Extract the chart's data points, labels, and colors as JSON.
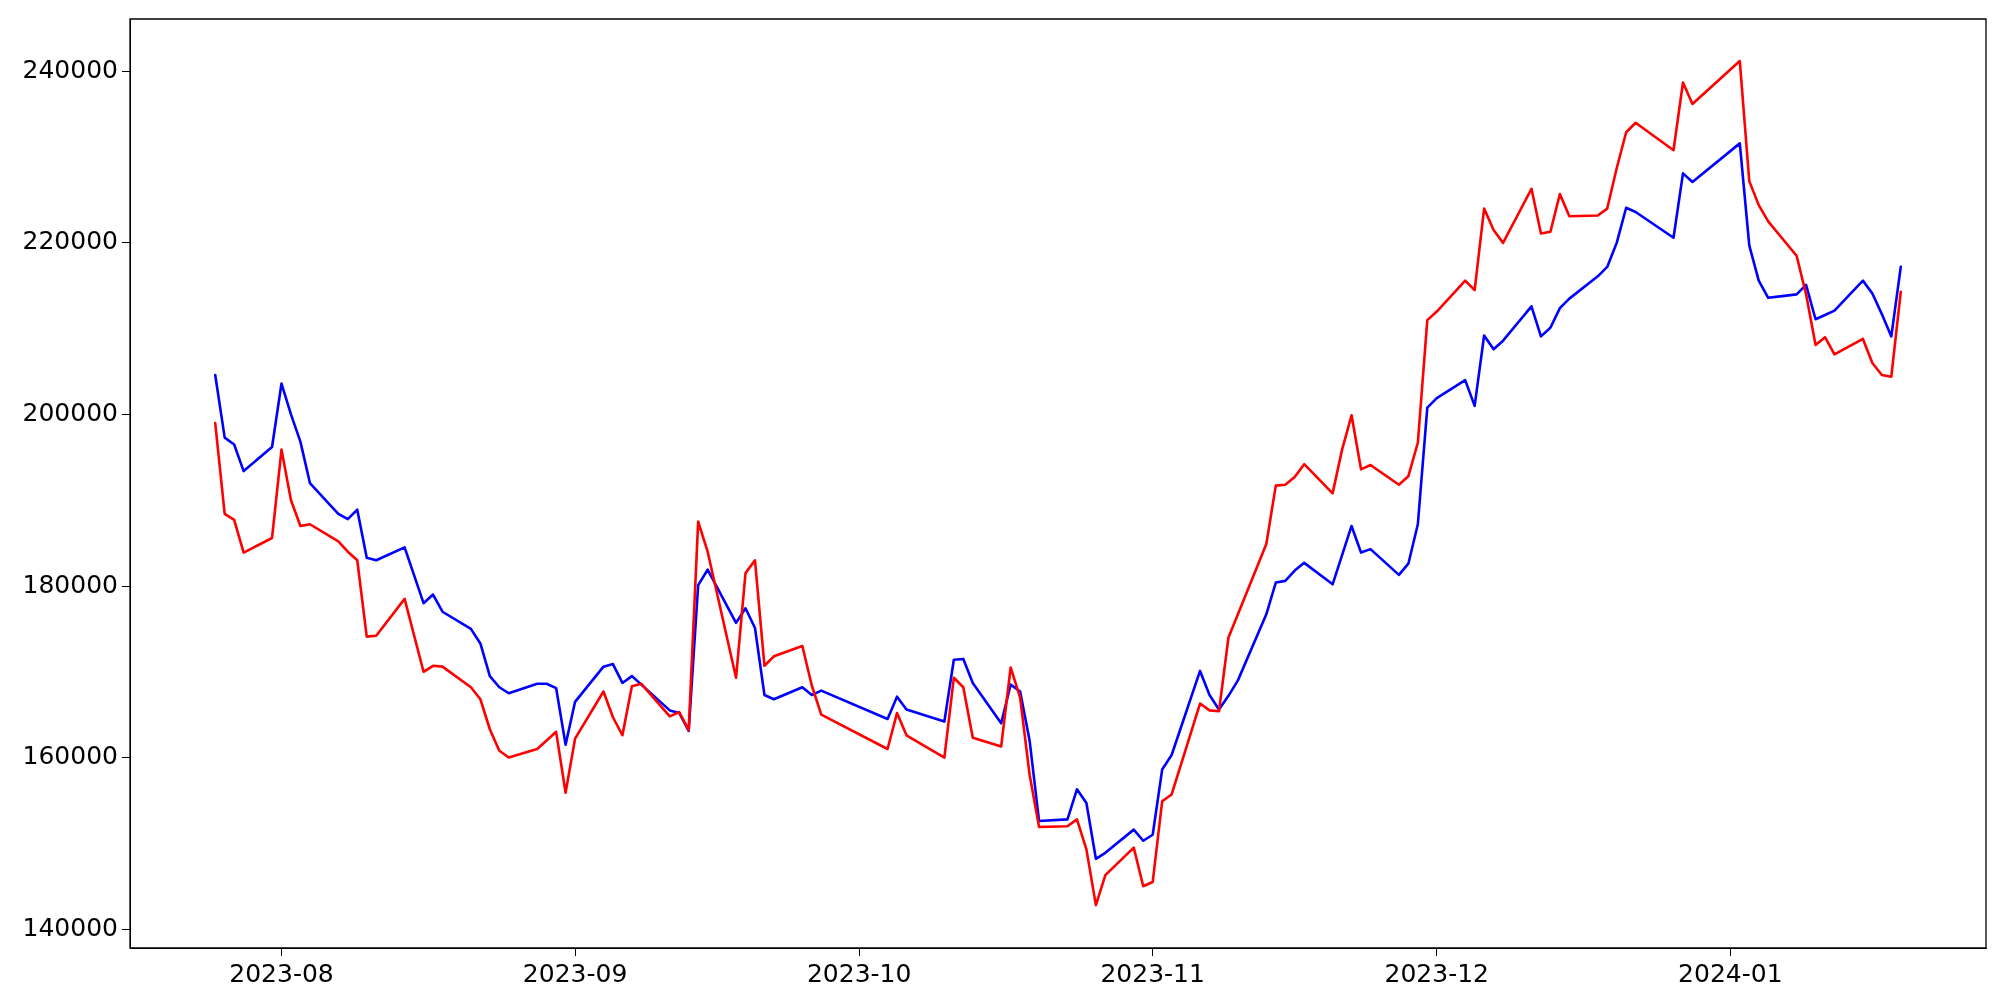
{
  "chart_data": {
    "type": "line",
    "x": [
      "2023-07-25",
      "2023-07-26",
      "2023-07-27",
      "2023-07-28",
      "2023-07-31",
      "2023-08-01",
      "2023-08-02",
      "2023-08-03",
      "2023-08-04",
      "2023-08-07",
      "2023-08-08",
      "2023-08-09",
      "2023-08-10",
      "2023-08-11",
      "2023-08-14",
      "2023-08-16",
      "2023-08-17",
      "2023-08-18",
      "2023-08-21",
      "2023-08-22",
      "2023-08-23",
      "2023-08-24",
      "2023-08-25",
      "2023-08-28",
      "2023-08-29",
      "2023-08-30",
      "2023-08-31",
      "2023-09-01",
      "2023-09-04",
      "2023-09-05",
      "2023-09-06",
      "2023-09-07",
      "2023-09-08",
      "2023-09-11",
      "2023-09-12",
      "2023-09-13",
      "2023-09-14",
      "2023-09-15",
      "2023-09-18",
      "2023-09-19",
      "2023-09-20",
      "2023-09-21",
      "2023-09-22",
      "2023-09-25",
      "2023-09-26",
      "2023-09-27",
      "2023-10-04",
      "2023-10-05",
      "2023-10-06",
      "2023-10-10",
      "2023-10-11",
      "2023-10-12",
      "2023-10-13",
      "2023-10-16",
      "2023-10-17",
      "2023-10-18",
      "2023-10-19",
      "2023-10-20",
      "2023-10-23",
      "2023-10-24",
      "2023-10-25",
      "2023-10-26",
      "2023-10-27",
      "2023-10-30",
      "2023-10-31",
      "2023-11-01",
      "2023-11-02",
      "2023-11-03",
      "2023-11-06",
      "2023-11-07",
      "2023-11-08",
      "2023-11-09",
      "2023-11-10",
      "2023-11-13",
      "2023-11-14",
      "2023-11-15",
      "2023-11-16",
      "2023-11-17",
      "2023-11-20",
      "2023-11-21",
      "2023-11-22",
      "2023-11-23",
      "2023-11-24",
      "2023-11-27",
      "2023-11-28",
      "2023-11-29",
      "2023-11-30",
      "2023-12-01",
      "2023-12-04",
      "2023-12-05",
      "2023-12-06",
      "2023-12-07",
      "2023-12-08",
      "2023-12-11",
      "2023-12-12",
      "2023-12-13",
      "2023-12-14",
      "2023-12-15",
      "2023-12-18",
      "2023-12-19",
      "2023-12-20",
      "2023-12-21",
      "2023-12-22",
      "2023-12-26",
      "2023-12-27",
      "2023-12-28",
      "2024-01-02",
      "2024-01-03",
      "2024-01-04",
      "2024-01-05",
      "2024-01-08",
      "2024-01-09",
      "2024-01-10",
      "2024-01-11",
      "2024-01-12",
      "2024-01-15",
      "2024-01-16",
      "2024-01-17",
      "2024-01-18",
      "2024-01-19"
    ],
    "series": [
      {
        "color": "#ff0000",
        "values": [
          199000,
          188400,
          187700,
          183900,
          185600,
          195900,
          190000,
          187000,
          187200,
          185200,
          184000,
          183000,
          174100,
          174200,
          178500,
          170000,
          170700,
          170600,
          168200,
          166800,
          163300,
          160800,
          160000,
          161000,
          162000,
          163000,
          155900,
          162200,
          167700,
          164700,
          162600,
          168300,
          168600,
          164800,
          165300,
          163200,
          187500,
          184000,
          169300,
          181500,
          183000,
          170700,
          171800,
          173000,
          168400,
          165000,
          161000,
          165200,
          162600,
          160000,
          169300,
          168200,
          162300,
          161300,
          170500,
          167000,
          158000,
          151900,
          152000,
          152800,
          149300,
          142800,
          146300,
          149500,
          145000,
          145500,
          154900,
          155700,
          166300,
          165500,
          165400,
          174000,
          176700,
          184900,
          191700,
          191800,
          192700,
          194200,
          190800,
          195900,
          199900,
          193600,
          194100,
          191800,
          192800,
          196700,
          211000,
          212000,
          215600,
          214500,
          224000,
          221500,
          220000,
          226300,
          221100,
          221300,
          225700,
          223100,
          223200,
          224000,
          228700,
          232900,
          234000,
          230800,
          238700,
          236200,
          241200,
          227200,
          224400,
          222500,
          218500,
          214000,
          208100,
          209000,
          207000,
          208800,
          206000,
          204600,
          204400,
          214300
        ]
      },
      {
        "color": "#0000ff",
        "values": [
          204600,
          197300,
          196500,
          193400,
          196200,
          203600,
          200000,
          196800,
          192000,
          188400,
          187800,
          188900,
          183300,
          183000,
          184500,
          178000,
          179000,
          177000,
          175000,
          173300,
          169500,
          168200,
          167500,
          168600,
          168600,
          168100,
          161500,
          166500,
          170600,
          170900,
          168700,
          169500,
          168500,
          165500,
          165200,
          163100,
          180100,
          181900,
          175700,
          177400,
          175100,
          167300,
          166800,
          168200,
          167300,
          167800,
          164500,
          167100,
          165600,
          164200,
          171400,
          171500,
          168700,
          164000,
          168500,
          167700,
          162000,
          152600,
          152800,
          156300,
          154700,
          148200,
          148900,
          151600,
          150300,
          151000,
          158600,
          160300,
          170100,
          167300,
          165600,
          167200,
          169000,
          176700,
          180400,
          180600,
          181800,
          182700,
          180200,
          183600,
          187000,
          183900,
          184300,
          181300,
          182600,
          187200,
          200800,
          201900,
          204000,
          201000,
          209200,
          207600,
          208600,
          212600,
          209100,
          210100,
          212400,
          213500,
          216100,
          217200,
          220000,
          224100,
          223600,
          220600,
          228100,
          227100,
          231600,
          219700,
          215600,
          213600,
          214000,
          215100,
          211100,
          211600,
          212100,
          215600,
          214100,
          211700,
          209100,
          217200
        ]
      }
    ],
    "xlim": [
      "2023-07-16",
      "2024-01-28"
    ],
    "xticks": [
      {
        "value": "2023-08-01",
        "label": "2023-08"
      },
      {
        "value": "2023-09-01",
        "label": "2023-09"
      },
      {
        "value": "2023-10-01",
        "label": "2023-10"
      },
      {
        "value": "2023-11-01",
        "label": "2023-11"
      },
      {
        "value": "2023-12-01",
        "label": "2023-12"
      },
      {
        "value": "2024-01-01",
        "label": "2024-01"
      }
    ],
    "ylim": [
      137800,
      246100
    ],
    "yticks": [
      140000,
      160000,
      180000,
      200000,
      220000,
      240000
    ],
    "grid": false,
    "legend": false,
    "marker": "none",
    "line_style": "solid"
  }
}
